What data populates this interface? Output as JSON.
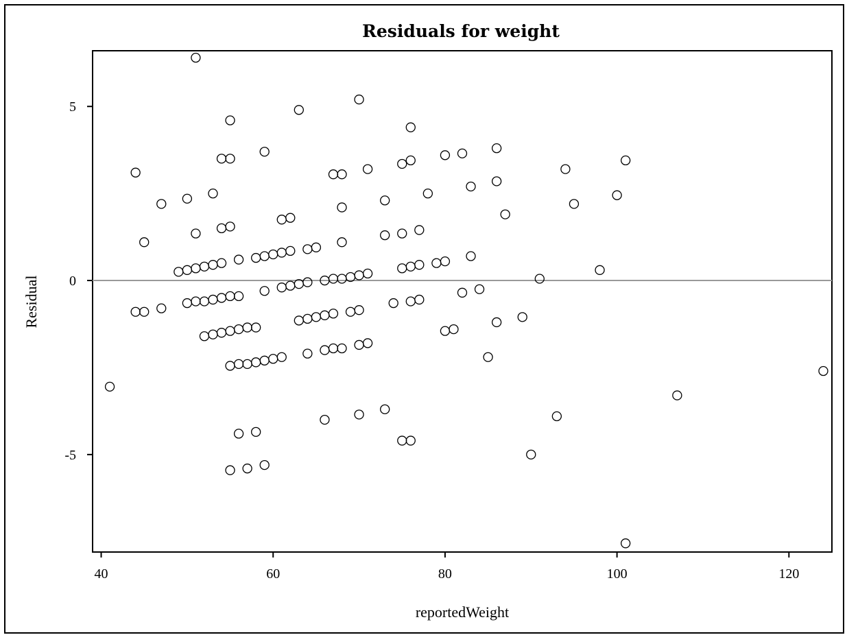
{
  "chart_data": {
    "type": "scatter",
    "title": "Residuals for weight",
    "xlabel": "reportedWeight",
    "ylabel": "Residual",
    "xlim": [
      39,
      125
    ],
    "ylim": [
      -7.8,
      6.6
    ],
    "xticks": [
      40,
      60,
      80,
      100,
      120
    ],
    "yticks": [
      5,
      0,
      -5
    ],
    "reference_line": 0,
    "grid": false,
    "marker": "open-circle",
    "colors": {
      "marker": "#000000",
      "reference_line": "#999999",
      "axes": "#000000"
    },
    "points": [
      [
        51,
        6.4
      ],
      [
        70,
        5.2
      ],
      [
        63,
        4.9
      ],
      [
        55,
        4.6
      ],
      [
        76,
        4.4
      ],
      [
        86,
        3.8
      ],
      [
        59,
        3.7
      ],
      [
        82,
        3.65
      ],
      [
        80,
        3.6
      ],
      [
        54,
        3.5
      ],
      [
        55,
        3.5
      ],
      [
        76,
        3.45
      ],
      [
        75,
        3.35
      ],
      [
        101,
        3.45
      ],
      [
        71,
        3.2
      ],
      [
        94,
        3.2
      ],
      [
        44,
        3.1
      ],
      [
        67,
        3.05
      ],
      [
        68,
        3.05
      ],
      [
        86,
        2.85
      ],
      [
        83,
        2.7
      ],
      [
        53,
        2.5
      ],
      [
        78,
        2.5
      ],
      [
        100,
        2.45
      ],
      [
        50,
        2.35
      ],
      [
        73,
        2.3
      ],
      [
        47,
        2.2
      ],
      [
        95,
        2.2
      ],
      [
        68,
        2.1
      ],
      [
        87,
        1.9
      ],
      [
        62,
        1.8
      ],
      [
        61,
        1.75
      ],
      [
        54,
        1.5
      ],
      [
        55,
        1.55
      ],
      [
        77,
        1.45
      ],
      [
        51,
        1.35
      ],
      [
        75,
        1.35
      ],
      [
        73,
        1.3
      ],
      [
        45,
        1.1
      ],
      [
        68,
        1.1
      ],
      [
        65,
        0.95
      ],
      [
        64,
        0.9
      ],
      [
        62,
        0.85
      ],
      [
        61,
        0.8
      ],
      [
        60,
        0.75
      ],
      [
        59,
        0.7
      ],
      [
        58,
        0.65
      ],
      [
        83,
        0.7
      ],
      [
        56,
        0.6
      ],
      [
        80,
        0.55
      ],
      [
        79,
        0.5
      ],
      [
        54,
        0.5
      ],
      [
        53,
        0.45
      ],
      [
        52,
        0.4
      ],
      [
        51,
        0.35
      ],
      [
        50,
        0.3
      ],
      [
        49,
        0.25
      ],
      [
        77,
        0.45
      ],
      [
        76,
        0.4
      ],
      [
        75,
        0.35
      ],
      [
        98,
        0.3
      ],
      [
        71,
        0.2
      ],
      [
        70,
        0.15
      ],
      [
        69,
        0.1
      ],
      [
        68,
        0.05
      ],
      [
        67,
        0.05
      ],
      [
        66,
        0.0
      ],
      [
        91,
        0.05
      ],
      [
        64,
        -0.05
      ],
      [
        63,
        -0.1
      ],
      [
        62,
        -0.15
      ],
      [
        61,
        -0.2
      ],
      [
        84,
        -0.25
      ],
      [
        82,
        -0.35
      ],
      [
        59,
        -0.3
      ],
      [
        55,
        -0.45
      ],
      [
        56,
        -0.45
      ],
      [
        54,
        -0.5
      ],
      [
        53,
        -0.55
      ],
      [
        52,
        -0.6
      ],
      [
        51,
        -0.6
      ],
      [
        50,
        -0.65
      ],
      [
        77,
        -0.55
      ],
      [
        76,
        -0.6
      ],
      [
        74,
        -0.65
      ],
      [
        47,
        -0.8
      ],
      [
        44,
        -0.9
      ],
      [
        45,
        -0.9
      ],
      [
        70,
        -0.85
      ],
      [
        69,
        -0.9
      ],
      [
        67,
        -0.95
      ],
      [
        66,
        -1.0
      ],
      [
        65,
        -1.05
      ],
      [
        64,
        -1.1
      ],
      [
        63,
        -1.15
      ],
      [
        89,
        -1.05
      ],
      [
        86,
        -1.2
      ],
      [
        58,
        -1.35
      ],
      [
        57,
        -1.35
      ],
      [
        56,
        -1.4
      ],
      [
        55,
        -1.45
      ],
      [
        54,
        -1.5
      ],
      [
        53,
        -1.55
      ],
      [
        52,
        -1.6
      ],
      [
        81,
        -1.4
      ],
      [
        80,
        -1.45
      ],
      [
        71,
        -1.8
      ],
      [
        70,
        -1.85
      ],
      [
        68,
        -1.95
      ],
      [
        67,
        -1.95
      ],
      [
        66,
        -2.0
      ],
      [
        64,
        -2.1
      ],
      [
        85,
        -2.2
      ],
      [
        61,
        -2.2
      ],
      [
        60,
        -2.25
      ],
      [
        59,
        -2.3
      ],
      [
        58,
        -2.35
      ],
      [
        57,
        -2.4
      ],
      [
        56,
        -2.4
      ],
      [
        55,
        -2.45
      ],
      [
        124,
        -2.6
      ],
      [
        41,
        -3.05
      ],
      [
        107,
        -3.3
      ],
      [
        73,
        -3.7
      ],
      [
        70,
        -3.85
      ],
      [
        93,
        -3.9
      ],
      [
        66,
        -4.0
      ],
      [
        58,
        -4.35
      ],
      [
        56,
        -4.4
      ],
      [
        75,
        -4.6
      ],
      [
        76,
        -4.6
      ],
      [
        90,
        -5.0
      ],
      [
        59,
        -5.3
      ],
      [
        57,
        -5.4
      ],
      [
        55,
        -5.45
      ],
      [
        101,
        -7.55
      ]
    ]
  }
}
